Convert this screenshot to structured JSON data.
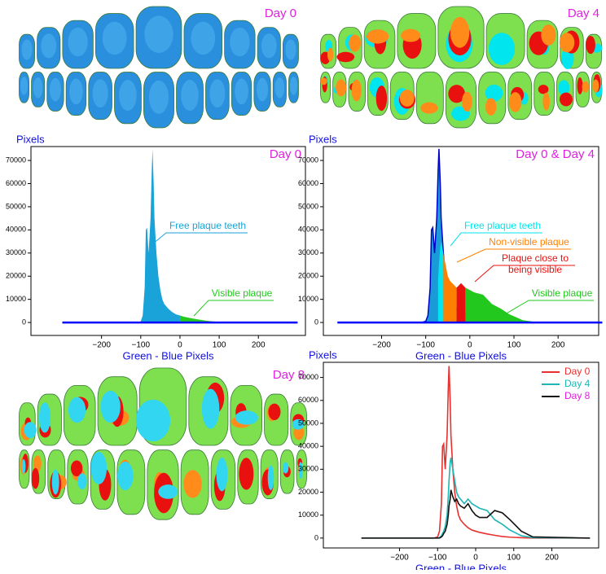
{
  "images": [
    {
      "label": "Day 0"
    },
    {
      "label": "Day 4"
    },
    {
      "label": "Day 8"
    }
  ],
  "chart_data": [
    {
      "type": "area",
      "title": "Day 0",
      "ylabel": "Pixels",
      "xlabel": "Green - Blue Pixels",
      "x": [
        -300,
        -110,
        -100,
        -95,
        -90,
        -87,
        -84,
        -80,
        -75,
        -72,
        -70,
        -67,
        -65,
        -60,
        -55,
        -50,
        -45,
        -40,
        -30,
        -20,
        -10,
        0,
        10,
        30,
        50,
        70,
        90,
        120,
        150,
        300
      ],
      "series": [
        {
          "name": "Free plaque teeth",
          "color": "#1aa3d9",
          "values": [
            0,
            0,
            500,
            3000,
            15000,
            40000,
            41000,
            30000,
            45000,
            65000,
            75000,
            60000,
            45000,
            30000,
            20000,
            14000,
            10000,
            8000,
            6000,
            4500,
            3500,
            3000,
            null,
            null,
            null,
            null,
            null,
            null,
            null,
            null
          ]
        },
        {
          "name": "Visible plaque",
          "color": "#22c81e",
          "values": [
            null,
            null,
            null,
            null,
            null,
            null,
            null,
            null,
            null,
            null,
            null,
            null,
            null,
            null,
            null,
            null,
            null,
            null,
            null,
            null,
            null,
            3000,
            2500,
            1800,
            1200,
            700,
            400,
            150,
            0,
            0
          ]
        }
      ],
      "baseline_color": "#0000ff",
      "xlim": [
        -380,
        320
      ],
      "ylim": [
        -5600,
        76000
      ],
      "xticks": [
        {
          "value": -200,
          "label": "−200"
        },
        {
          "value": -100,
          "label": "−100"
        },
        0,
        100,
        200
      ],
      "yticks": [
        0,
        10000,
        20000,
        30000,
        40000,
        50000,
        60000,
        70000
      ]
    },
    {
      "type": "area",
      "title": "Day 0 & Day 4",
      "ylabel": "Pixels",
      "xlabel": "Green - Blue Pixels",
      "x": [
        -300,
        -110,
        -100,
        -95,
        -90,
        -87,
        -84,
        -80,
        -75,
        -72,
        -70,
        -67,
        -65,
        -60,
        -55,
        -50,
        -45,
        -40,
        -30,
        -20,
        -10,
        0,
        10,
        30,
        50,
        70,
        90,
        120,
        150,
        300
      ],
      "series": [
        {
          "color": "#1a9ad6",
          "stroke": "#0000cd",
          "values": [
            0,
            0,
            500,
            3000,
            15000,
            40000,
            41000,
            30000,
            45000,
            65000,
            75000,
            60000,
            45000,
            30000,
            20000,
            14000,
            10000,
            8000,
            6000,
            4500,
            3500,
            3000,
            2500,
            1800,
            1200,
            700,
            400,
            150,
            0,
            0
          ]
        },
        {
          "name": "Free plaque teeth",
          "color": "#00e5ee",
          "values": [
            null,
            null,
            null,
            null,
            null,
            null,
            null,
            null,
            null,
            18000,
            25000,
            33000,
            35000,
            30000,
            null,
            null,
            null,
            null,
            null,
            null,
            null,
            null,
            null,
            null,
            null,
            null,
            null,
            null,
            null,
            null
          ]
        },
        {
          "name": "Non-visible plaque",
          "color": "#ff8000",
          "values": [
            null,
            null,
            null,
            null,
            null,
            null,
            null,
            null,
            null,
            null,
            null,
            null,
            null,
            30000,
            25000,
            20000,
            18000,
            17000,
            15000,
            null,
            null,
            null,
            null,
            null,
            null,
            null,
            null,
            null,
            null,
            null
          ]
        },
        {
          "name": "Plaque close to being visible",
          "color": "#e8110f",
          "values": [
            null,
            null,
            null,
            null,
            null,
            null,
            null,
            null,
            null,
            null,
            null,
            null,
            null,
            null,
            null,
            null,
            null,
            null,
            15000,
            17000,
            15000,
            null,
            null,
            null,
            null,
            null,
            null,
            null,
            null,
            null
          ]
        },
        {
          "name": "Visible plaque",
          "color": "#22c81e",
          "values": [
            null,
            null,
            null,
            null,
            null,
            null,
            null,
            null,
            null,
            null,
            null,
            null,
            null,
            null,
            null,
            null,
            null,
            null,
            null,
            null,
            15000,
            14000,
            13000,
            12000,
            8000,
            6000,
            3500,
            1000,
            200,
            0
          ]
        }
      ],
      "baseline_color": "#0000ff",
      "xlim": [
        -332,
        292
      ],
      "ylim": [
        -5600,
        76000
      ],
      "xticks": [
        {
          "value": -200,
          "label": "−200"
        },
        {
          "value": -100,
          "label": "−100"
        },
        0,
        100,
        200
      ],
      "yticks": [
        0,
        10000,
        20000,
        30000,
        40000,
        50000,
        60000,
        70000
      ]
    },
    {
      "type": "line",
      "ylabel": "Pixels",
      "xlabel": "Green - Blue Pixels",
      "legend": "upper right",
      "x": [
        -300,
        -110,
        -100,
        -95,
        -90,
        -87,
        -84,
        -80,
        -75,
        -72,
        -70,
        -67,
        -65,
        -60,
        -55,
        -50,
        -45,
        -40,
        -30,
        -20,
        -10,
        0,
        10,
        30,
        50,
        70,
        90,
        120,
        150,
        300
      ],
      "series": [
        {
          "name": "Day 0",
          "color": "#e8312f",
          "values": [
            0,
            0,
            500,
            3000,
            15000,
            40000,
            41000,
            30000,
            45000,
            65000,
            75000,
            60000,
            45000,
            30000,
            20000,
            14000,
            10000,
            8000,
            6000,
            4500,
            3500,
            3000,
            2500,
            1800,
            1200,
            700,
            400,
            150,
            0,
            0
          ]
        },
        {
          "name": "Day 4",
          "color": "#20b5b5",
          "values": [
            0,
            0,
            0,
            200,
            1000,
            2000,
            3000,
            5000,
            10000,
            18000,
            25000,
            33000,
            35000,
            30000,
            25000,
            20000,
            18000,
            17000,
            15000,
            17000,
            15000,
            14000,
            13000,
            12000,
            8000,
            6000,
            3500,
            1000,
            200,
            0
          ]
        },
        {
          "name": "Day 8",
          "color": "#111111",
          "values": [
            0,
            0,
            0,
            0,
            500,
            1000,
            2000,
            3000,
            6000,
            10000,
            14000,
            17000,
            21000,
            18000,
            16000,
            17000,
            15000,
            14000,
            13000,
            15000,
            12000,
            10000,
            9000,
            9000,
            12000,
            11000,
            8000,
            3000,
            500,
            0
          ]
        }
      ],
      "xlim": [
        -400,
        323
      ],
      "ylim": [
        -4300,
        76600
      ],
      "xticks": [
        {
          "value": -200,
          "label": "−200"
        },
        {
          "value": -100,
          "label": "−100"
        },
        0,
        100,
        200
      ],
      "yticks": [
        0,
        10000,
        20000,
        30000,
        40000,
        50000,
        60000,
        70000
      ]
    }
  ]
}
